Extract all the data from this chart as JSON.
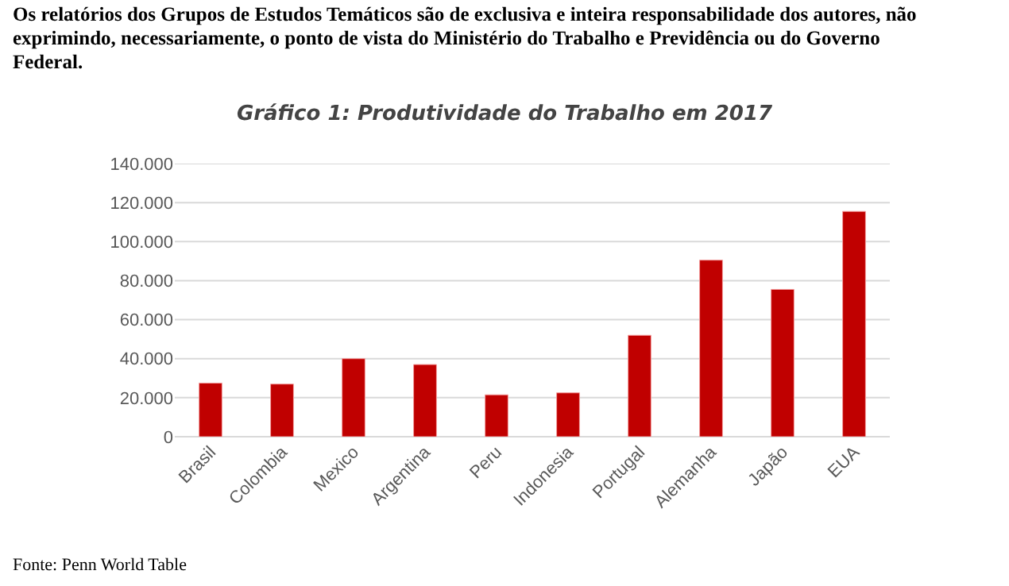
{
  "chart_data": {
    "type": "bar",
    "title": "Gráfico 1: Produtividade do Trabalho em 2017",
    "annotations": [
      "Os relatórios dos Grupos de Estudos Temáticos são de exclusiva e inteira responsabilidade dos autores, não exprimindo, necessariamente, o ponto de vista do Ministério do Trabalho e Previdência ou do Governo Federal.",
      "Fonte: Penn World Table"
    ],
    "categories": [
      "Brasil",
      "Colombia",
      "Mexico",
      "Argentina",
      "Peru",
      "Indonesia",
      "Portugal",
      "Alemanha",
      "Japão",
      "EUA"
    ],
    "values": [
      27500,
      27000,
      40000,
      37000,
      21500,
      22500,
      52000,
      90500,
      75500,
      115500
    ],
    "color": "#c00000",
    "ylim": [
      0,
      140000
    ],
    "yticks": [
      0,
      {
        "value": 20000,
        "label": "20.000"
      },
      {
        "value": 40000,
        "label": "40.000"
      },
      {
        "value": 60000,
        "label": "60.000"
      },
      {
        "value": 80000,
        "label": "80.000"
      },
      {
        "value": 100000,
        "label": "100.000"
      },
      {
        "value": 120000,
        "label": "120.000"
      },
      {
        "value": 140000,
        "label": "140.000"
      }
    ],
    "grid": "y"
  }
}
